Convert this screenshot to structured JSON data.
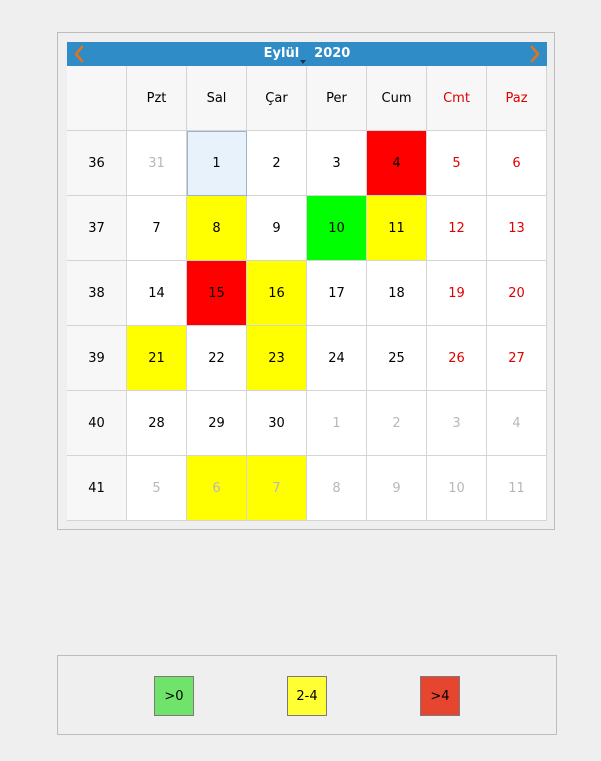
{
  "calendar": {
    "month": "Eylül",
    "year": "2020",
    "weekday_headers": [
      {
        "label": "Pzt",
        "weekend": false
      },
      {
        "label": "Sal",
        "weekend": false
      },
      {
        "label": "Çar",
        "weekend": false
      },
      {
        "label": "Per",
        "weekend": false
      },
      {
        "label": "Cum",
        "weekend": false
      },
      {
        "label": "Cmt",
        "weekend": true
      },
      {
        "label": "Paz",
        "weekend": true
      }
    ],
    "weeks": [
      {
        "week": "36",
        "days": [
          {
            "day": "31",
            "other_month": true
          },
          {
            "day": "1",
            "selected": true
          },
          {
            "day": "2"
          },
          {
            "day": "3"
          },
          {
            "day": "4",
            "highlight": "#ff0000"
          },
          {
            "day": "5",
            "weekend": true
          },
          {
            "day": "6",
            "weekend": true
          }
        ]
      },
      {
        "week": "37",
        "days": [
          {
            "day": "7"
          },
          {
            "day": "8",
            "highlight": "#ffff00"
          },
          {
            "day": "9"
          },
          {
            "day": "10",
            "highlight": "#00ff00"
          },
          {
            "day": "11",
            "highlight": "#ffff00"
          },
          {
            "day": "12",
            "weekend": true
          },
          {
            "day": "13",
            "weekend": true
          }
        ]
      },
      {
        "week": "38",
        "days": [
          {
            "day": "14"
          },
          {
            "day": "15",
            "highlight": "#ff0000"
          },
          {
            "day": "16",
            "highlight": "#ffff00"
          },
          {
            "day": "17"
          },
          {
            "day": "18"
          },
          {
            "day": "19",
            "weekend": true
          },
          {
            "day": "20",
            "weekend": true
          }
        ]
      },
      {
        "week": "39",
        "days": [
          {
            "day": "21",
            "highlight": "#ffff00"
          },
          {
            "day": "22"
          },
          {
            "day": "23",
            "highlight": "#ffff00"
          },
          {
            "day": "24"
          },
          {
            "day": "25"
          },
          {
            "day": "26",
            "weekend": true
          },
          {
            "day": "27",
            "weekend": true
          }
        ]
      },
      {
        "week": "40",
        "days": [
          {
            "day": "28"
          },
          {
            "day": "29"
          },
          {
            "day": "30"
          },
          {
            "day": "1",
            "other_month": true
          },
          {
            "day": "2",
            "other_month": true
          },
          {
            "day": "3",
            "other_month": true
          },
          {
            "day": "4",
            "other_month": true
          }
        ]
      },
      {
        "week": "41",
        "days": [
          {
            "day": "5",
            "other_month": true
          },
          {
            "day": "6",
            "other_month": true,
            "highlight": "#ffff00"
          },
          {
            "day": "7",
            "other_month": true,
            "highlight": "#ffff00"
          },
          {
            "day": "8",
            "other_month": true
          },
          {
            "day": "9",
            "other_month": true
          },
          {
            "day": "10",
            "other_month": true
          },
          {
            "day": "11",
            "other_month": true
          }
        ]
      }
    ]
  },
  "legend": {
    "items": [
      {
        "label": ">0",
        "color": "#70e36a"
      },
      {
        "label": "2-4",
        "color": "#ffff33"
      },
      {
        "label": ">4",
        "color": "#e64530"
      }
    ]
  },
  "colors": {
    "nav_bar": "#308cc6",
    "weekend_text": "#e00000",
    "other_month_text": "#b8b8b8"
  },
  "icons": {
    "prev": "chevron-left-icon",
    "next": "chevron-right-icon"
  }
}
